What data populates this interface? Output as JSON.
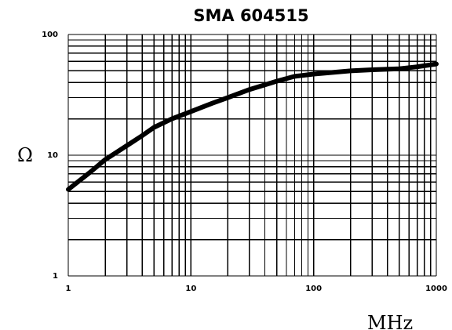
{
  "chart_data": {
    "type": "line",
    "title": "SMA 604515",
    "xlabel": "MHz",
    "ylabel": "Ω",
    "xscale": "log",
    "yscale": "log",
    "xlim": [
      1,
      1000
    ],
    "ylim": [
      1,
      100
    ],
    "grid": true,
    "x_tick_labels": [
      "1",
      "10",
      "100",
      "1000"
    ],
    "y_tick_labels": [
      "1",
      "10",
      "100"
    ],
    "colors": {
      "curve": "#000000",
      "grid": "#000000"
    },
    "series": [
      {
        "x": [
          1,
          1.5,
          2,
          3,
          4,
          5,
          7,
          10,
          15,
          20,
          30,
          50,
          70,
          100,
          200,
          300,
          500,
          700,
          1000
        ],
        "y": [
          5.2,
          7.2,
          9.2,
          12,
          14.5,
          17,
          20,
          23,
          27,
          30,
          35,
          41,
          45,
          47,
          50,
          51,
          52,
          54,
          57
        ]
      }
    ]
  }
}
